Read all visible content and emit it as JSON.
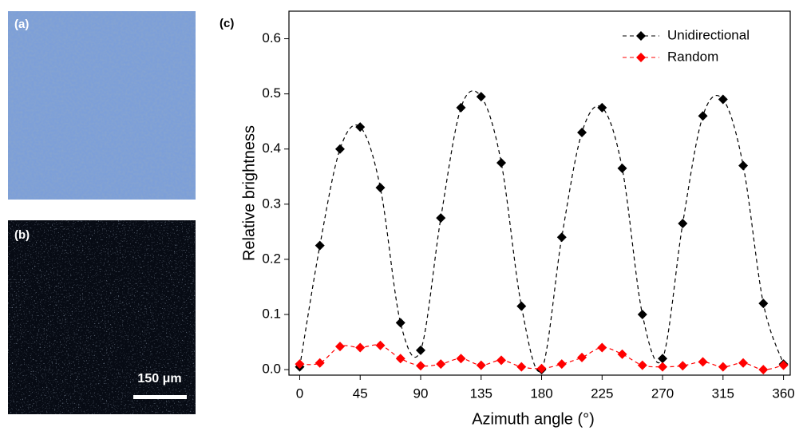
{
  "panels": [
    {
      "label": "(a)"
    },
    {
      "label": "(b)",
      "scale_bar": "150 μm"
    }
  ],
  "chart_data": {
    "type": "line",
    "panel_label": "(c)",
    "x_label": "Azimuth angle (°)",
    "y_label": "Relative brightness",
    "x": [
      0,
      15,
      30,
      45,
      60,
      75,
      90,
      105,
      120,
      135,
      150,
      165,
      180,
      195,
      210,
      225,
      240,
      255,
      270,
      285,
      300,
      315,
      330,
      345,
      360
    ],
    "series": [
      {
        "name": "Unidirectional",
        "color": "#000000",
        "values": [
          0.005,
          0.225,
          0.4,
          0.44,
          0.33,
          0.085,
          0.035,
          0.275,
          0.475,
          0.495,
          0.375,
          0.115,
          0.0,
          0.24,
          0.43,
          0.475,
          0.365,
          0.1,
          0.02,
          0.265,
          0.46,
          0.49,
          0.37,
          0.12,
          0.01
        ]
      },
      {
        "name": "Random",
        "color": "#ff0000",
        "values": [
          0.01,
          0.012,
          0.042,
          0.04,
          0.044,
          0.02,
          0.007,
          0.01,
          0.02,
          0.008,
          0.017,
          0.005,
          0.002,
          0.01,
          0.022,
          0.04,
          0.028,
          0.008,
          0.005,
          0.007,
          0.014,
          0.005,
          0.012,
          0.0,
          0.008
        ]
      }
    ],
    "xlim": [
      -8,
      365
    ],
    "ylim": [
      -0.01,
      0.65
    ],
    "xticks": [
      0,
      45,
      90,
      135,
      180,
      225,
      270,
      315,
      360
    ],
    "yticks": [
      {
        "value": 0,
        "label": "0.0"
      },
      0.1,
      0.2,
      0.3,
      0.4,
      0.5,
      0.6
    ],
    "legend": "upper right",
    "line_style": "dashed",
    "marker": "diamond"
  }
}
